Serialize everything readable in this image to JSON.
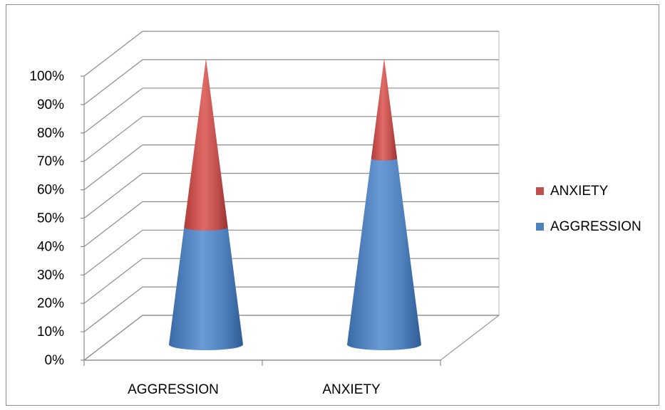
{
  "chart_data": {
    "type": "bar",
    "style": "3d-stacked-cone-percent",
    "categories": [
      "AGGRESSION",
      "ANXIETY"
    ],
    "series": [
      {
        "name": "AGGRESSION",
        "values": [
          41,
          65
        ],
        "color": "#4f81bd"
      },
      {
        "name": "ANXIETY",
        "values": [
          59,
          35
        ],
        "color": "#c0504d"
      }
    ],
    "y_ticks": [
      "0%",
      "10%",
      "20%",
      "30%",
      "40%",
      "50%",
      "60%",
      "70%",
      "80%",
      "90%",
      "100%"
    ],
    "ylim": [
      0,
      100
    ],
    "grid": true,
    "legend_position": "right",
    "legend_order": [
      "ANXIETY",
      "AGGRESSION"
    ],
    "title": "",
    "xlabel": "",
    "ylabel": ""
  }
}
